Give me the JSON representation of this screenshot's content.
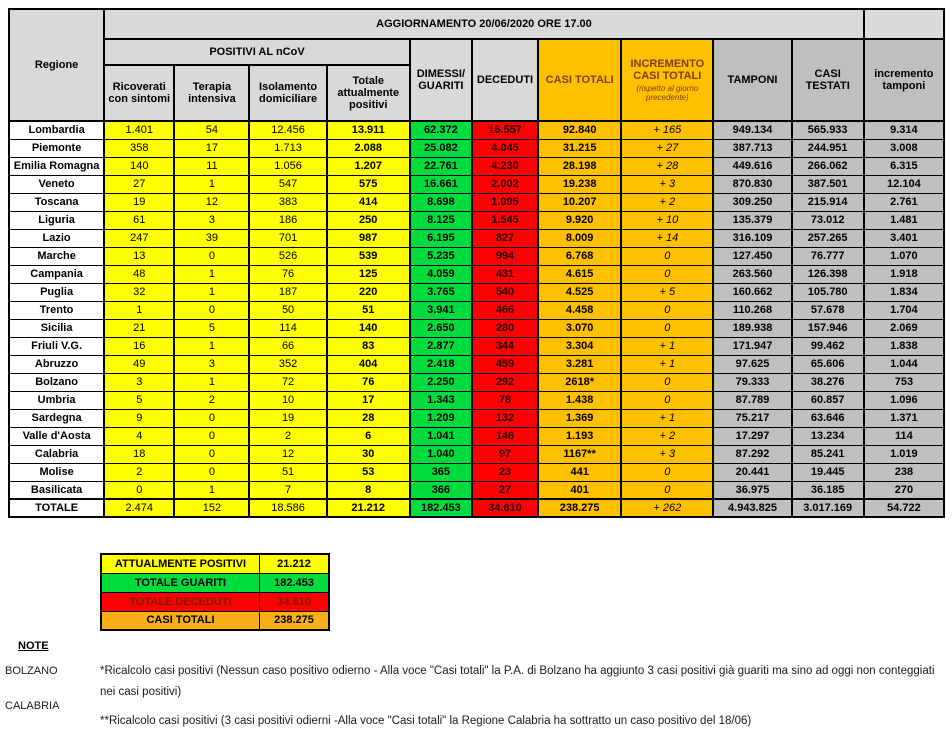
{
  "title": "AGGIORNAMENTO 20/06/2020 ORE 17.00",
  "colors": {
    "yellow": "#FFFF00",
    "green": "#00DC3E",
    "red": "#FF0000",
    "gold": "#FFC000",
    "gray_data": "#BFBFBF",
    "gray_head": "#D9D9D9",
    "summary_orange": "#F8AF18",
    "dark_red_text": "#843C0C"
  },
  "table": {
    "headers": {
      "regione": "Regione",
      "positivi_group": "POSITIVI AL nCoV",
      "ricoverati": "Ricoverati con sintomi",
      "terapia": "Terapia intensiva",
      "isolamento": "Isolamento domiciliare",
      "totale_positivi": "Totale attualmente positivi",
      "dimessi_guariti": "DIMESSI/ GUARITI",
      "deceduti": "DECEDUTI",
      "casi_totali": "CASI TOTALI",
      "incremento_title": "INCREMENTO CASI  TOTALI",
      "incremento_sub": "(rispetto al giorno precedente)",
      "tamponi": "TAMPONI",
      "casi_testati": "CASI TESTATI",
      "incremento_tamponi": "incremento tamponi"
    },
    "column_keys": [
      "region",
      "ricoverati",
      "terapia",
      "isolamento",
      "totale_positivi",
      "dimessi_guariti",
      "deceduti",
      "casi_totali",
      "incremento",
      "tamponi",
      "casi_testati",
      "incremento_tamponi"
    ],
    "rows": [
      [
        "Lombardia",
        "1.401",
        "54",
        "12.456",
        "13.911",
        "62.372",
        "16.557",
        "92.840",
        "+ 165",
        "949.134",
        "565.933",
        "9.314"
      ],
      [
        "Piemonte",
        "358",
        "17",
        "1.713",
        "2.088",
        "25.082",
        "4.045",
        "31.215",
        "+ 27",
        "387.713",
        "244.951",
        "3.008"
      ],
      [
        "Emilia Romagna",
        "140",
        "11",
        "1.056",
        "1.207",
        "22.761",
        "4.230",
        "28.198",
        "+ 28",
        "449.616",
        "266.062",
        "6.315"
      ],
      [
        "Veneto",
        "27",
        "1",
        "547",
        "575",
        "16.661",
        "2.002",
        "19.238",
        "+ 3",
        "870.830",
        "387.501",
        "12.104"
      ],
      [
        "Toscana",
        "19",
        "12",
        "383",
        "414",
        "8.698",
        "1.095",
        "10.207",
        "+ 2",
        "309.250",
        "215.914",
        "2.761"
      ],
      [
        "Liguria",
        "61",
        "3",
        "186",
        "250",
        "8.125",
        "1.545",
        "9.920",
        "+ 10",
        "135.379",
        "73.012",
        "1.481"
      ],
      [
        "Lazio",
        "247",
        "39",
        "701",
        "987",
        "6.195",
        "827",
        "8.009",
        "+ 14",
        "316.109",
        "257.265",
        "3.401"
      ],
      [
        "Marche",
        "13",
        "0",
        "526",
        "539",
        "5.235",
        "994",
        "6.768",
        "0",
        "127.450",
        "76.777",
        "1.070"
      ],
      [
        "Campania",
        "48",
        "1",
        "76",
        "125",
        "4.059",
        "431",
        "4.615",
        "0",
        "263.560",
        "126.398",
        "1.918"
      ],
      [
        "Puglia",
        "32",
        "1",
        "187",
        "220",
        "3.765",
        "540",
        "4.525",
        "+ 5",
        "160.662",
        "105.780",
        "1.834"
      ],
      [
        "Trento",
        "1",
        "0",
        "50",
        "51",
        "3.941",
        "466",
        "4.458",
        "0",
        "110.268",
        "57.678",
        "1.704"
      ],
      [
        "Sicilia",
        "21",
        "5",
        "114",
        "140",
        "2.650",
        "280",
        "3.070",
        "0",
        "189.938",
        "157.946",
        "2.069"
      ],
      [
        "Friuli V.G.",
        "16",
        "1",
        "66",
        "83",
        "2.877",
        "344",
        "3.304",
        "+ 1",
        "171.947",
        "99.462",
        "1.838"
      ],
      [
        "Abruzzo",
        "49",
        "3",
        "352",
        "404",
        "2.418",
        "459",
        "3.281",
        "+ 1",
        "97.625",
        "65.606",
        "1.044"
      ],
      [
        "Bolzano",
        "3",
        "1",
        "72",
        "76",
        "2.250",
        "292",
        "2618*",
        "0",
        "79.333",
        "38.276",
        "753"
      ],
      [
        "Umbria",
        "5",
        "2",
        "10",
        "17",
        "1.343",
        "78",
        "1.438",
        "0",
        "87.789",
        "60.857",
        "1.096"
      ],
      [
        "Sardegna",
        "9",
        "0",
        "19",
        "28",
        "1.209",
        "132",
        "1.369",
        "+ 1",
        "75.217",
        "63.646",
        "1.371"
      ],
      [
        "Valle d'Aosta",
        "4",
        "0",
        "2",
        "6",
        "1.041",
        "146",
        "1.193",
        "+ 2",
        "17.297",
        "13.234",
        "114"
      ],
      [
        "Calabria",
        "18",
        "0",
        "12",
        "30",
        "1.040",
        "97",
        "1167**",
        "+ 3",
        "87.292",
        "85.241",
        "1.019"
      ],
      [
        "Molise",
        "2",
        "0",
        "51",
        "53",
        "365",
        "23",
        "441",
        "0",
        "20.441",
        "19.445",
        "238"
      ],
      [
        "Basilicata",
        "0",
        "1",
        "7",
        "8",
        "366",
        "27",
        "401",
        "0",
        "36.975",
        "36.185",
        "270"
      ]
    ],
    "totale": [
      "TOTALE",
      "2.474",
      "152",
      "18.586",
      "21.212",
      "182.453",
      "34.610",
      "238.275",
      "+ 262",
      "4.943.825",
      "3.017.169",
      "54.722"
    ]
  },
  "summary": {
    "rows": [
      {
        "label": "ATTUALMENTE POSITIVI",
        "value": "21.212",
        "color": "yellow"
      },
      {
        "label": "TOTALE GUARITI",
        "value": "182.453",
        "color": "green"
      },
      {
        "label": "TOTALE DECEDUTI",
        "value": "34.610",
        "color": "red"
      },
      {
        "label": "CASI TOTALI",
        "value": "238.275",
        "color": "orange"
      }
    ]
  },
  "notes": {
    "heading": "NOTE",
    "items": [
      {
        "label": "BOLZANO",
        "text": "*Ricalcolo casi positivi (Nessun caso positivo odierno - Alla voce \"Casi totali\" la P.A. di Bolzano ha aggiunto  3 casi positivi già guariti ma sino ad oggi  non conteggiati nei casi positivi)"
      },
      {
        "label": "CALABRIA",
        "text": "**Ricalcolo casi positivi (3 casi positivi odierni -Alla voce \"Casi totali\" la Regione Calabria ha sottratto un caso positivo del 18/06)"
      }
    ]
  }
}
